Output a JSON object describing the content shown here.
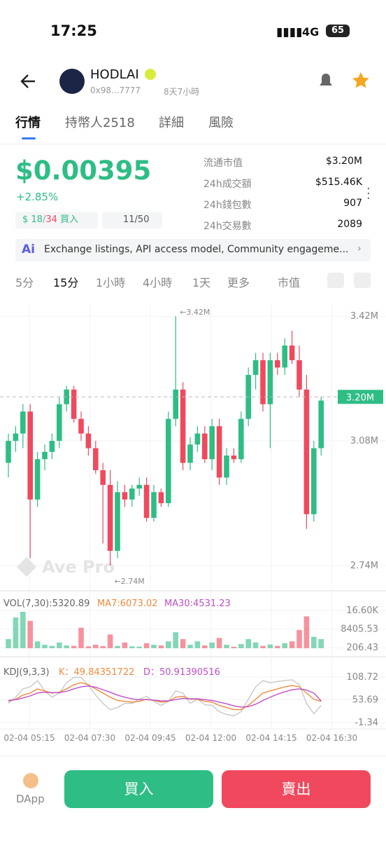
{
  "status": {
    "time": "17:25",
    "network": "4G",
    "battery": "65"
  },
  "header": {
    "name": "HODLAI",
    "address": "0x98...7777",
    "age": "8天7小時"
  },
  "tabs": [
    "行情",
    "持幣人2518",
    "詳細",
    "風險"
  ],
  "price": {
    "value": "$0.00395",
    "change": "+2.85%",
    "ratio": [
      "18",
      "34"
    ],
    "separator": "/",
    "buy_label": "買入",
    "rank": "11/50"
  },
  "stats": [
    {
      "label": "流通市值",
      "value": "$3.20M"
    },
    {
      "label": "24h成交額",
      "value": "$515.46K"
    },
    {
      "label": "24h錢包數",
      "value": "907"
    },
    {
      "label": "24h交易數",
      "value": "2089"
    }
  ],
  "ai_note": "Exchange listings, API access model, Community engageme...",
  "intervals": [
    "5分",
    "15分",
    "1小時",
    "4小時",
    "1天",
    "更多",
    "市值"
  ],
  "watermark": "Ave Pro",
  "chart_data": [
    {
      "type": "candlestick",
      "up_color": "#2ebd85",
      "down_color": "#f0495e",
      "open": [
        3.02,
        3.08,
        3.1,
        3.16,
        2.92,
        3.03,
        3.05,
        3.08,
        3.18,
        3.22,
        3.14,
        3.1,
        3.06,
        3.0,
        2.96,
        2.78,
        2.94,
        2.92,
        2.95,
        2.96,
        2.87,
        2.94,
        2.91,
        3.14,
        3.22,
        3.02,
        3.07,
        3.1,
        3.03,
        3.12,
        2.98,
        3.04,
        3.03,
        3.14,
        3.26,
        3.3,
        3.18,
        3.3,
        3.28,
        3.34,
        3.3,
        3.22,
        2.88,
        3.06
      ],
      "high": [
        3.1,
        3.12,
        3.18,
        3.18,
        3.05,
        3.07,
        3.1,
        3.2,
        3.23,
        3.23,
        3.16,
        3.12,
        3.08,
        3.02,
        3.0,
        2.97,
        2.96,
        2.96,
        2.98,
        2.98,
        2.96,
        2.95,
        3.16,
        3.42,
        3.24,
        3.09,
        3.12,
        3.12,
        3.14,
        3.14,
        3.06,
        3.06,
        3.16,
        3.28,
        3.32,
        3.32,
        3.32,
        3.32,
        3.36,
        3.38,
        3.34,
        3.26,
        3.08,
        3.2
      ],
      "low": [
        2.98,
        3.05,
        3.06,
        2.76,
        2.9,
        3.0,
        3.03,
        3.06,
        3.16,
        3.13,
        3.08,
        3.04,
        2.99,
        2.8,
        2.74,
        2.76,
        2.9,
        2.9,
        2.93,
        2.86,
        2.86,
        2.9,
        2.9,
        3.12,
        3.0,
        3.0,
        3.05,
        3.02,
        3.0,
        2.96,
        2.96,
        3.02,
        3.02,
        3.12,
        3.22,
        3.16,
        3.06,
        3.26,
        3.26,
        3.29,
        3.2,
        2.84,
        2.86,
        3.04
      ],
      "close": [
        3.08,
        3.1,
        3.16,
        2.92,
        3.03,
        3.05,
        3.08,
        3.18,
        3.22,
        3.14,
        3.1,
        3.06,
        3.0,
        2.96,
        2.78,
        2.94,
        2.92,
        2.95,
        2.96,
        2.87,
        2.94,
        2.91,
        3.14,
        3.22,
        3.02,
        3.07,
        3.1,
        3.03,
        3.12,
        2.98,
        3.04,
        3.03,
        3.14,
        3.26,
        3.3,
        3.18,
        3.3,
        3.28,
        3.34,
        3.3,
        3.22,
        2.88,
        3.06,
        3.19
      ],
      "ylim": [
        2.671,
        3.451
      ],
      "yticks": [
        {
          "value": 3.42,
          "label": "3.42M"
        },
        {
          "value": 3.08,
          "label": "3.08M"
        },
        {
          "value": 2.74,
          "label": "2.74M"
        }
      ],
      "current": {
        "value": 3.2,
        "label": "3.20M"
      },
      "annotations": [
        {
          "value": 3.42,
          "label": "←3.42M"
        },
        {
          "value": 2.74,
          "label": "←2.74M"
        }
      ],
      "xticks": [
        "02-04 05:15",
        "02-04 07:30",
        "02-04 09:45",
        "02-04 12:00",
        "02-04 14:15",
        "02-04 16:30"
      ]
    },
    {
      "type": "bar",
      "legend": [
        "VOL(7,30):5320.89",
        "MA7:6073.02",
        "MA30:4531.23"
      ],
      "values": [
        4000,
        13500,
        16000,
        12000,
        3000,
        1500,
        1000,
        2500,
        1200,
        1000,
        9000,
        800,
        1500,
        900,
        6000,
        1000,
        2500,
        800,
        700,
        2200,
        1500,
        1200,
        3000,
        7000,
        4000,
        1500,
        3000,
        1200,
        2500,
        4500,
        1500,
        600,
        1800,
        4000,
        2500,
        1000,
        1600,
        1000,
        2200,
        3000,
        8000,
        14000,
        5000,
        4000
      ],
      "ylim": [
        -3740,
        16600
      ],
      "yticks": [
        {
          "value": 16600,
          "label": "16.60K"
        },
        8405.53,
        206.43
      ]
    },
    {
      "type": "line",
      "legend": [
        "KDJ(9,3,3)",
        "K：49.84351722",
        "D：50.91390516"
      ],
      "series": [
        {
          "name": "J",
          "color": "#c8c8c8",
          "values": [
            45,
            60,
            80,
            85,
            100,
            75,
            60,
            70,
            95,
            108,
            108,
            88,
            65,
            45,
            30,
            35,
            45,
            45,
            55,
            62,
            50,
            40,
            50,
            75,
            70,
            45,
            55,
            42,
            40,
            25,
            18,
            15,
            25,
            55,
            85,
            100,
            95,
            98,
            100,
            102,
            90,
            45,
            20,
            40
          ]
        },
        {
          "name": "K",
          "color": "#f08a3c",
          "values": [
            50,
            55,
            65,
            70,
            80,
            75,
            70,
            72,
            80,
            90,
            95,
            90,
            80,
            70,
            60,
            52,
            50,
            48,
            50,
            55,
            52,
            48,
            50,
            60,
            62,
            55,
            55,
            50,
            48,
            40,
            35,
            30,
            30,
            40,
            55,
            70,
            75,
            80,
            85,
            88,
            85,
            70,
            55,
            50
          ]
        },
        {
          "name": "D",
          "color": "#c04ec8",
          "values": [
            52,
            54,
            58,
            63,
            70,
            72,
            71,
            71,
            74,
            80,
            85,
            87,
            84,
            78,
            72,
            65,
            60,
            56,
            54,
            54,
            53,
            51,
            51,
            54,
            57,
            56,
            56,
            54,
            52,
            48,
            44,
            39,
            36,
            37,
            43,
            52,
            60,
            67,
            73,
            78,
            80,
            77,
            70,
            51
          ]
        }
      ],
      "ylim": [
        -1.34,
        108.72
      ],
      "yticks": [
        108.72,
        53.69,
        -1.34
      ]
    }
  ],
  "footer": {
    "dapp": "DApp",
    "buy": "買入",
    "sell": "賣出"
  }
}
